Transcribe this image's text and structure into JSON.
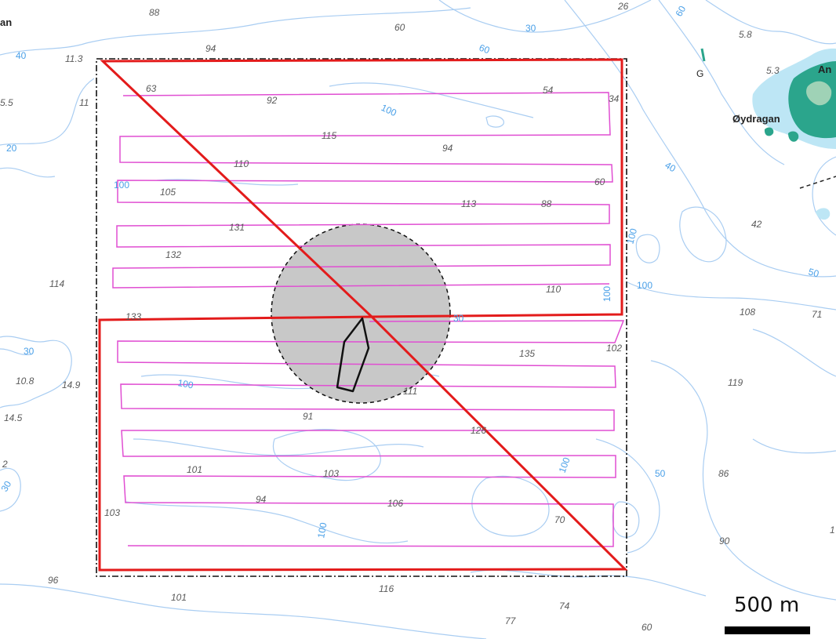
{
  "colors": {
    "contour": "#a9cdf2",
    "contour_label": "#4aa0e8",
    "sea": "#ffffff",
    "land": "#2ba58c",
    "island_shallow": "#bde6f5",
    "survey_line": "#e04ed2",
    "boundary": "#e31b1b",
    "exclusion_zone": "#c8c8c8",
    "vessel": "#111111",
    "scale_bar": "#000000"
  },
  "place_names": {
    "oydragan": "Øydragan",
    "an_left": "an",
    "an_right": "An"
  },
  "place_marker": "G",
  "scale_bar": {
    "label": "500 m"
  },
  "depth_soundings": [
    "88",
    "94",
    "60",
    "26",
    "5.8",
    "5.3",
    "11.3",
    "63",
    "92",
    "54",
    "34",
    "115",
    "94",
    "110",
    "105",
    "60",
    "113",
    "88",
    "131",
    "132",
    "114",
    "42",
    "110",
    "108",
    "71",
    "133",
    "102",
    "135",
    "10.8",
    "14.9",
    "119",
    "14.5",
    "111",
    "91",
    "126",
    "2",
    "101",
    "103",
    "86",
    "94",
    "106",
    "103",
    "70",
    "90",
    "96",
    "116",
    "101",
    "74",
    "77",
    "60",
    "1",
    "5.5",
    "11"
  ],
  "contour_labels": [
    "60",
    "30",
    "40",
    "100",
    "20",
    "100",
    "60",
    "100",
    "40",
    "30",
    "100",
    "100",
    "50",
    "30",
    "100",
    "50",
    "100",
    "100",
    "30"
  ]
}
